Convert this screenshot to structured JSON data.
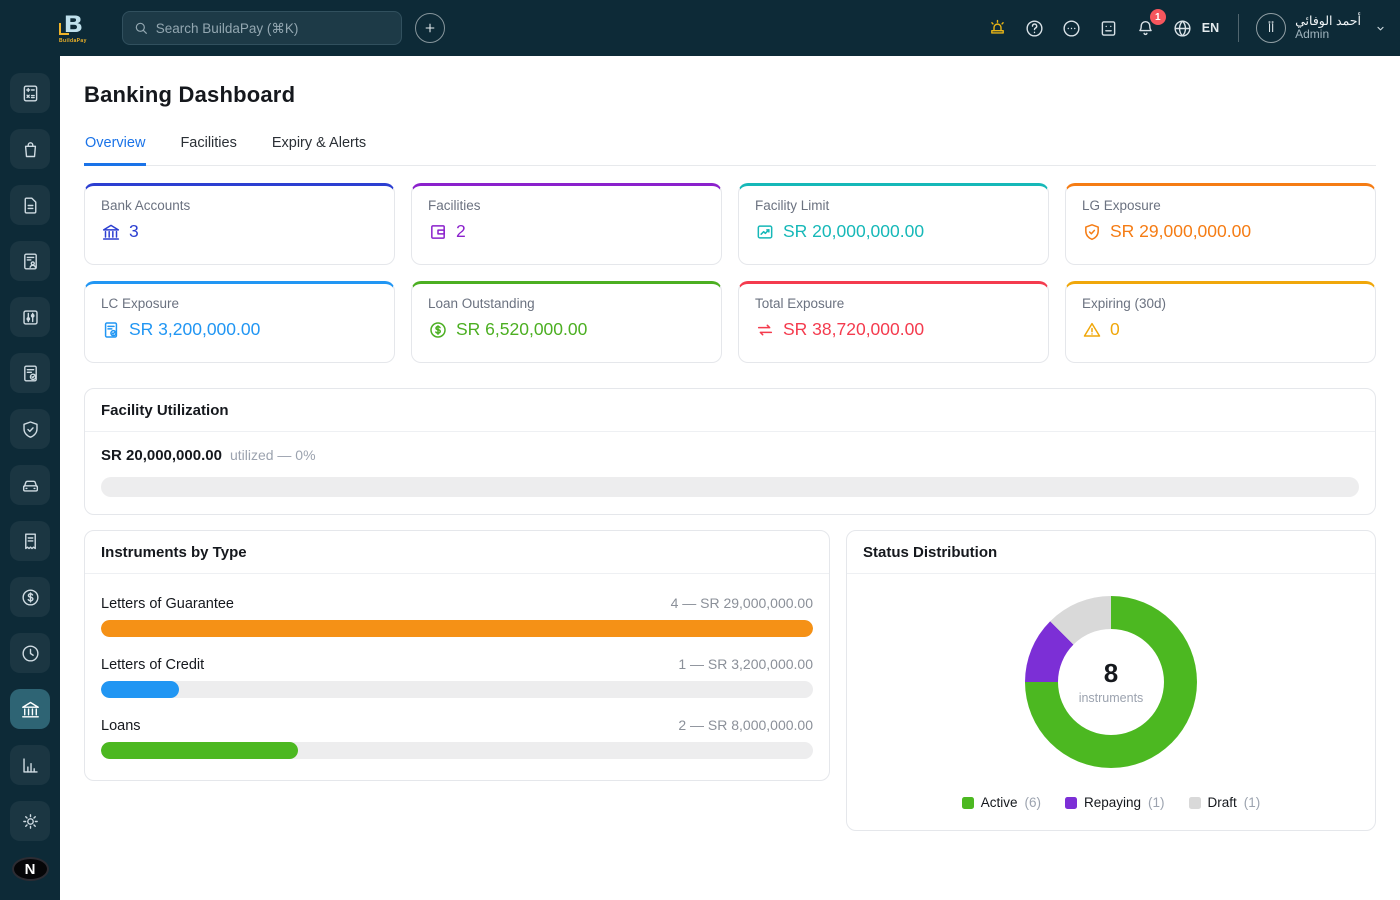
{
  "brand": {
    "logo_text": "BuildaPay",
    "logo_letter": "B"
  },
  "topbar": {
    "search": {
      "placeholder": "Search BuildaPay (⌘K)"
    },
    "icons": [
      {
        "name": "siren-icon",
        "color": "#e7b416"
      },
      {
        "name": "help-icon"
      },
      {
        "name": "chat-icon"
      },
      {
        "name": "journal-icon"
      },
      {
        "name": "bell-icon",
        "badge": "1"
      },
      {
        "name": "globe-icon",
        "label": "EN"
      }
    ],
    "user": {
      "name": "أحمد الوفائي",
      "role": "Admin",
      "initials": "أأ"
    }
  },
  "sidebar": {
    "items": [
      {
        "icon": "calculator-icon"
      },
      {
        "icon": "shopping-bag-icon"
      },
      {
        "icon": "document-icon"
      },
      {
        "icon": "contract-icon"
      },
      {
        "icon": "sliders-icon"
      },
      {
        "icon": "clipboard-check-icon"
      },
      {
        "icon": "shield-check-icon"
      },
      {
        "icon": "car-icon"
      },
      {
        "icon": "receipt-icon"
      },
      {
        "icon": "dollar-coin-icon"
      },
      {
        "icon": "clock-icon"
      },
      {
        "icon": "bank-icon",
        "active": true
      },
      {
        "icon": "bar-chart-icon"
      },
      {
        "icon": "gear-icon"
      }
    ],
    "footer_avatar": "N"
  },
  "page": {
    "title": "Banking Dashboard",
    "tabs": [
      {
        "label": "Overview",
        "active": true
      },
      {
        "label": "Facilities",
        "active": false
      },
      {
        "label": "Expiry & Alerts",
        "active": false
      }
    ]
  },
  "stat_cards": [
    {
      "label": "Bank Accounts",
      "value": "3",
      "accent": "#2c3fd1",
      "icon": "bank-icon"
    },
    {
      "label": "Facilities",
      "value": "2",
      "accent": "#8b21cc",
      "icon": "facility-icon"
    },
    {
      "label": "Facility Limit",
      "value": "SR 20,000,000.00",
      "accent": "#16b8b8",
      "icon": "trend-chart-icon"
    },
    {
      "label": "LG Exposure",
      "value": "SR 29,000,000.00",
      "accent": "#f57c14",
      "icon": "shield-check-icon"
    },
    {
      "label": "LC Exposure",
      "value": "SR 3,200,000.00",
      "accent": "#2196f3",
      "icon": "clipboard-check-icon"
    },
    {
      "label": "Loan Outstanding",
      "value": "SR 6,520,000.00",
      "accent": "#4caf22",
      "icon": "dollar-coin-icon"
    },
    {
      "label": "Total Exposure",
      "value": "SR 38,720,000.00",
      "accent": "#f43b4e",
      "icon": "swap-arrows-icon"
    },
    {
      "label": "Expiring (30d)",
      "value": "0",
      "accent": "#f0a70a",
      "icon": "warning-triangle-icon"
    }
  ],
  "facility_utilization": {
    "title": "Facility Utilization",
    "amount": "SR 20,000,000.00",
    "note": "utilized — 0%",
    "percent": 0
  },
  "chart_data": [
    {
      "type": "bar",
      "title": "Instruments by Type",
      "orientation": "horizontal",
      "categories": [
        "Letters of Guarantee",
        "Letters of Credit",
        "Loans"
      ],
      "counts": [
        4,
        1,
        2
      ],
      "amounts": [
        29000000,
        3200000,
        8000000
      ],
      "value_labels": [
        "4 — SR 29,000,000.00",
        "1 — SR 3,200,000.00",
        "2 — SR 8,000,000.00"
      ],
      "bar_colors": [
        "#f59116",
        "#2196f3",
        "#4cb821"
      ],
      "xlim": [
        0,
        29000000
      ],
      "grid": false
    },
    {
      "type": "pie",
      "title": "Status Distribution",
      "donut": true,
      "center_value": "8",
      "center_label": "instruments",
      "segments": [
        {
          "label": "Active",
          "count": 6,
          "color": "#4cb821"
        },
        {
          "label": "Repaying",
          "count": 1,
          "color": "#7c2fd6"
        },
        {
          "label": "Draft",
          "count": 1,
          "color": "#d9d9d9"
        }
      ],
      "legend_position": "bottom"
    }
  ]
}
